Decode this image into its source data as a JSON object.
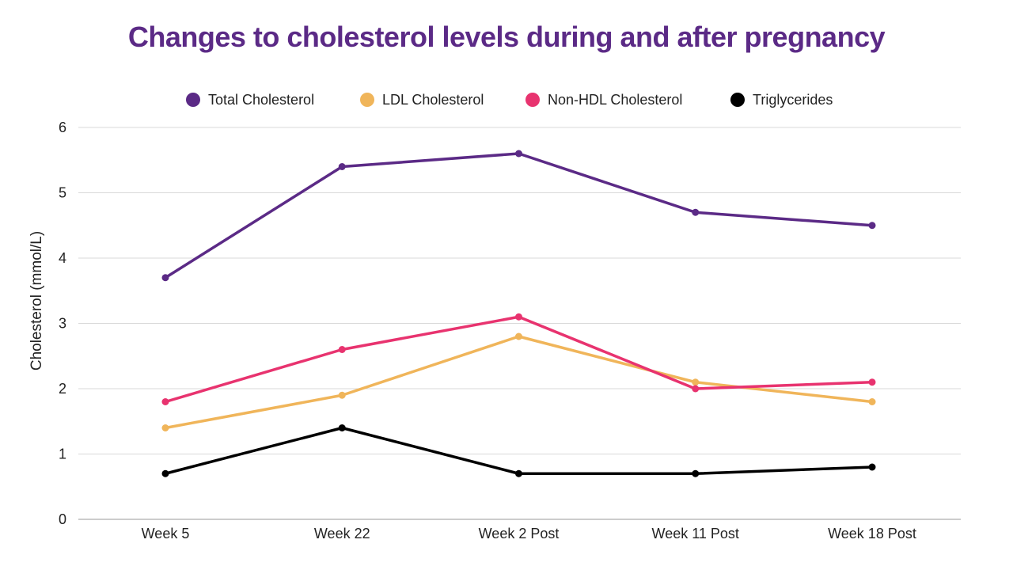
{
  "chart_data": {
    "type": "line",
    "title": "Changes to cholesterol levels during and after pregnancy",
    "xlabel": "",
    "ylabel": "Cholesterol (mmol/L)",
    "ylim": [
      0,
      6
    ],
    "yticks": [
      "0",
      "1",
      "2",
      "3",
      "4",
      "5",
      "6"
    ],
    "grid": true,
    "legend_position": "top",
    "categories": [
      "Week 5",
      "Week 22",
      "Week 2 Post",
      "Week 11 Post",
      "Week 18 Post"
    ],
    "series": [
      {
        "name": "Total Cholesterol",
        "color": "#5b2a86",
        "values": [
          3.7,
          5.4,
          5.6,
          4.7,
          4.5
        ]
      },
      {
        "name": "LDL Cholesterol",
        "color": "#f0b55a",
        "values": [
          1.4,
          1.9,
          2.8,
          2.1,
          1.8
        ]
      },
      {
        "name": "Non-HDL Cholesterol",
        "color": "#e8336f",
        "values": [
          1.8,
          2.6,
          3.1,
          2.0,
          2.1
        ]
      },
      {
        "name": "Triglycerides",
        "color": "#000000",
        "values": [
          0.7,
          1.4,
          0.7,
          0.7,
          0.8
        ]
      }
    ]
  },
  "colors": {
    "title": "#5b2a86",
    "grid": "#d9d9d9",
    "axis": "#999999"
  }
}
